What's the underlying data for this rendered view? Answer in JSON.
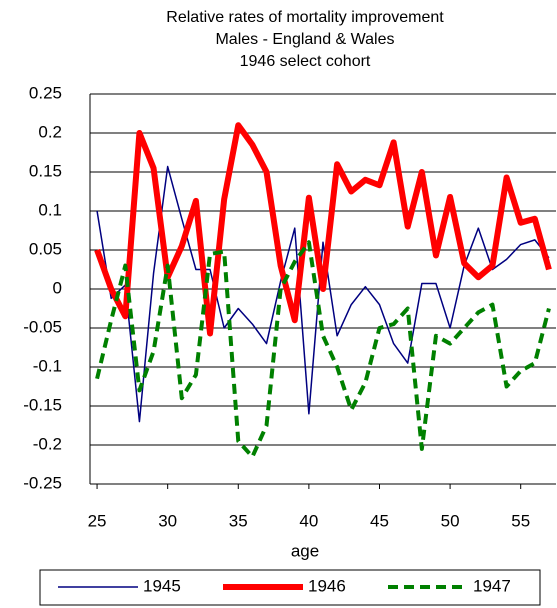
{
  "chart_data": {
    "type": "line",
    "title": [
      "Relative rates of mortality improvement",
      "Males - England & Wales",
      "1946 select cohort"
    ],
    "x_label": "age",
    "x": [
      25,
      26,
      27,
      28,
      29,
      30,
      31,
      32,
      33,
      34,
      35,
      36,
      37,
      38,
      39,
      40,
      41,
      42,
      43,
      44,
      45,
      46,
      47,
      48,
      49,
      50,
      51,
      52,
      53,
      54,
      55,
      56,
      57
    ],
    "series": [
      {
        "name": "1945",
        "color": "#000080",
        "width": 1.5,
        "dash": "none",
        "values": [
          0.1,
          -0.012,
          0.005,
          -0.17,
          0.02,
          0.157,
          0.09,
          0.025,
          0.025,
          -0.05,
          -0.025,
          -0.045,
          -0.07,
          0.01,
          0.078,
          -0.16,
          0.06,
          -0.06,
          -0.02,
          0.003,
          -0.02,
          -0.07,
          -0.095,
          0.007,
          0.007,
          -0.05,
          0.03,
          0.078,
          0.025,
          0.038,
          0.057,
          0.063,
          0.04
        ]
      },
      {
        "name": "1946",
        "color": "#ff0000",
        "width": 6,
        "dash": "none",
        "values": [
          0.05,
          0.0,
          -0.035,
          0.2,
          0.155,
          0.015,
          0.055,
          0.113,
          -0.057,
          0.115,
          0.21,
          0.185,
          0.15,
          0.03,
          -0.04,
          0.117,
          0.0,
          0.16,
          0.125,
          0.14,
          0.133,
          0.188,
          0.08,
          0.15,
          0.043,
          0.118,
          0.033,
          0.015,
          0.03,
          0.143,
          0.085,
          0.09,
          0.025
        ]
      },
      {
        "name": "1947",
        "color": "#008000",
        "width": 4,
        "dash": "10 6",
        "values": [
          -0.115,
          -0.04,
          0.03,
          -0.13,
          -0.08,
          0.03,
          -0.14,
          -0.11,
          0.045,
          0.048,
          -0.195,
          -0.215,
          -0.175,
          0.0,
          0.035,
          0.06,
          -0.06,
          -0.1,
          -0.155,
          -0.12,
          -0.05,
          -0.045,
          -0.025,
          -0.205,
          -0.06,
          -0.07,
          -0.05,
          -0.03,
          -0.02,
          -0.125,
          -0.105,
          -0.095,
          -0.025
        ]
      }
    ],
    "xlim": [
      24.5,
      57.5
    ],
    "xticks": [
      25,
      30,
      35,
      40,
      45,
      50,
      55
    ],
    "ylim": [
      -0.25,
      0.25
    ],
    "yticks": [
      -0.25,
      -0.2,
      -0.15,
      -0.1,
      -0.05,
      0,
      0.05,
      0.1,
      0.15,
      0.2,
      0.25
    ],
    "grid": true,
    "legend": "bottom"
  }
}
